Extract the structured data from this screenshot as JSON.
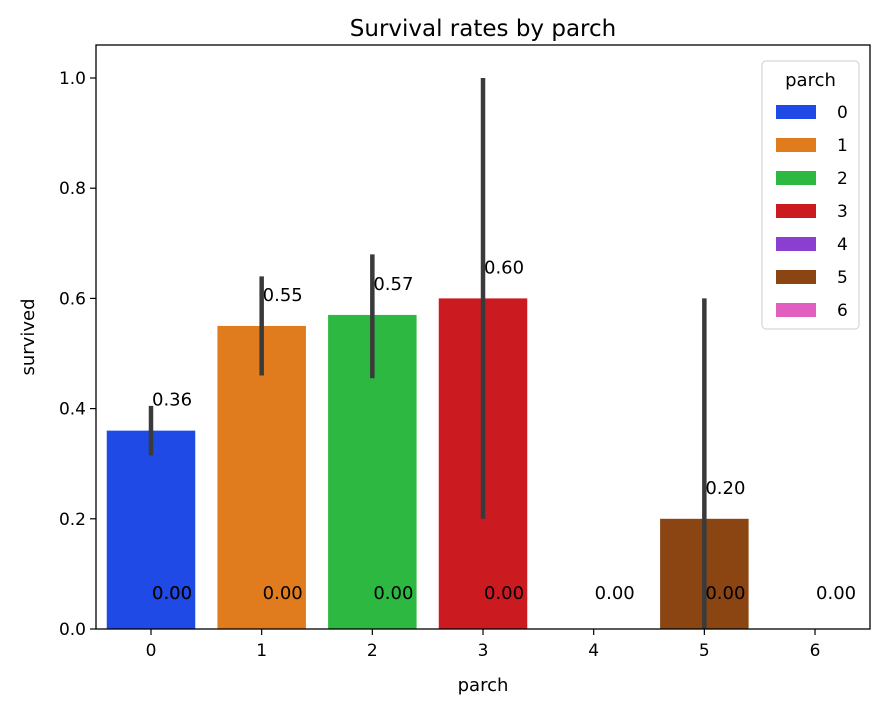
{
  "chart_data": {
    "type": "bar",
    "title": "Survival rates by parch",
    "xlabel": "parch",
    "ylabel": "survived",
    "categories": [
      "0",
      "1",
      "2",
      "3",
      "4",
      "5",
      "6"
    ],
    "values": [
      0.36,
      0.55,
      0.57,
      0.6,
      0.0,
      0.2,
      0.0
    ],
    "value_labels": [
      "0.36",
      "0.55",
      "0.57",
      "0.60",
      "0.00",
      "0.20",
      "0.00"
    ],
    "zero_labels": [
      "0.00",
      "0.00",
      "0.00",
      "0.00",
      "0.00",
      "0.00",
      "0.00"
    ],
    "error_bars": [
      {
        "low": 0.315,
        "high": 0.405
      },
      {
        "low": 0.46,
        "high": 0.64
      },
      {
        "low": 0.455,
        "high": 0.68
      },
      {
        "low": 0.2,
        "high": 1.0
      },
      null,
      {
        "low": 0.0,
        "high": 0.6
      },
      null
    ],
    "ylim": [
      0,
      1.0
    ],
    "yticks": [
      "0.0",
      "0.2",
      "0.4",
      "0.6",
      "0.8",
      "1.0"
    ],
    "ytick_values": [
      0.0,
      0.2,
      0.4,
      0.6,
      0.8,
      1.0
    ],
    "colors": [
      "#1f4ae6",
      "#e07b1e",
      "#2db842",
      "#cc1a21",
      "#8b3fd1",
      "#8b4513",
      "#e05fbf"
    ],
    "errorbar_color": "#3a3a3a",
    "grid": false,
    "legend": {
      "title": "parch",
      "position": "top-right",
      "entries": [
        "0",
        "1",
        "2",
        "3",
        "4",
        "5",
        "6"
      ]
    }
  }
}
